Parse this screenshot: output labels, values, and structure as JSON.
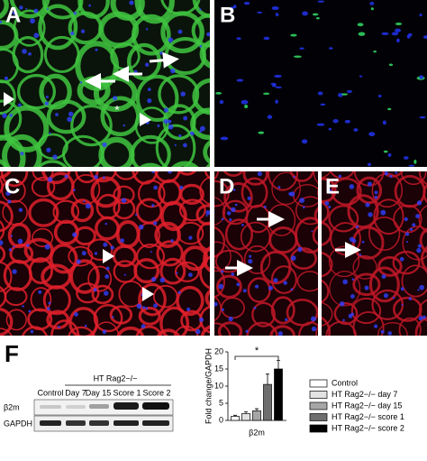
{
  "panels": [
    "A",
    "B",
    "C",
    "D",
    "E",
    "F"
  ],
  "annotations": [
    "*"
  ],
  "blot": {
    "group_label": "HT Rag2−/−",
    "lanes": [
      "Control",
      "Day 7",
      "Day 15",
      "Score 1",
      "Score 2"
    ],
    "rows": [
      "β2m",
      "GAPDH"
    ]
  },
  "chart_data": {
    "type": "bar",
    "categories": [
      "β2m"
    ],
    "ylabel": "Fold change/GAPDH",
    "ylim": [
      0,
      20
    ],
    "yticks": [
      0,
      5,
      10,
      15,
      20
    ],
    "significance": "*",
    "series": [
      {
        "name": "Control",
        "color": "#ffffff",
        "values": [
          1.2
        ],
        "errors": [
          0.3
        ]
      },
      {
        "name": "HT Rag2−/− day 7",
        "color": "#e2e2e2",
        "values": [
          2
        ],
        "errors": [
          0.5
        ]
      },
      {
        "name": "HT Rag2−/− day 15",
        "color": "#a6a6a6",
        "values": [
          2.8
        ],
        "errors": [
          0.6
        ]
      },
      {
        "name": "HT Rag2−/− score 1",
        "color": "#6e6e6e",
        "values": [
          10.5
        ],
        "errors": [
          3
        ]
      },
      {
        "name": "HT Rag2−/− score 2",
        "color": "#000000",
        "values": [
          15
        ],
        "errors": [
          2.5
        ]
      }
    ]
  }
}
